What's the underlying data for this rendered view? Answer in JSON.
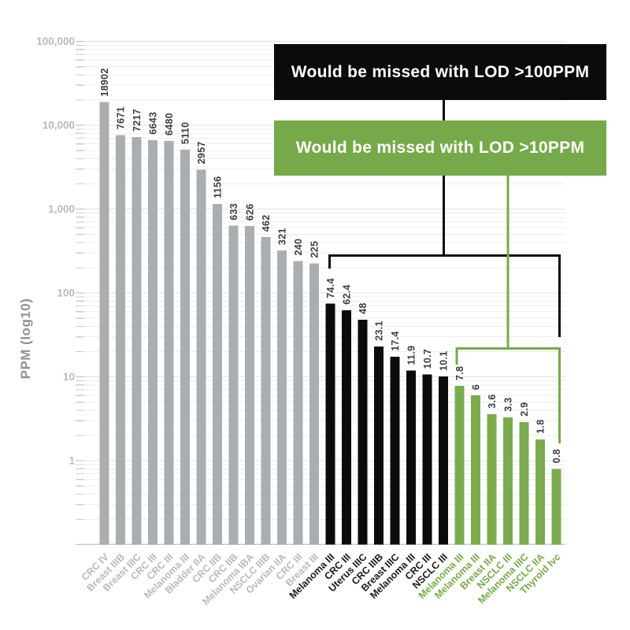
{
  "colors": {
    "background": "#ffffff",
    "gray_bar": "#abaeb0",
    "black_bar": "#0b0b0b",
    "green_bar": "#7aac4e",
    "green_accent": "#76a94a",
    "axis_text": "#b7babc",
    "axis_title_text": "#8e9295",
    "value_text": "#3c4042",
    "black_label_text": "#1b1b1b",
    "grid_minor": "#ededee",
    "grid_major": "#dfe1e2"
  },
  "annotations": {
    "lod100": {
      "text": "Would be missed with LOD >100PPM",
      "bg": "#0b0b0b"
    },
    "lod10": {
      "text": "Would be missed with LOD >10PPM",
      "bg": "#76a94a"
    }
  },
  "chart_data": {
    "type": "bar",
    "yscale": "log10",
    "ylabel": "PPM (log10)",
    "ylim": [
      0.1,
      100000
    ],
    "grid": true,
    "yticks": [
      {
        "label": "100,000",
        "value": 100000
      },
      {
        "label": "10,000",
        "value": 10000
      },
      {
        "label": "1,000",
        "value": 1000
      },
      {
        "label": "100",
        "value": 100
      },
      {
        "label": "10",
        "value": 10
      },
      {
        "label": "1",
        "value": 1
      }
    ],
    "series_groups": [
      {
        "id": "gray",
        "color": "#abaeb0",
        "callout": ""
      },
      {
        "id": "black",
        "color": "#0b0b0b",
        "callout": "lod100"
      },
      {
        "id": "green",
        "color": "#7aac4e",
        "callout": "lod10"
      }
    ],
    "bars": [
      {
        "category": "CRC IV",
        "value": 18902,
        "label": "18902",
        "group": "gray"
      },
      {
        "category": "Breast IIIB",
        "value": 7671,
        "label": "7671",
        "group": "gray"
      },
      {
        "category": "Breast IIIC",
        "value": 7217,
        "label": "7217",
        "group": "gray"
      },
      {
        "category": "CRC III",
        "value": 6643,
        "label": "6643",
        "group": "gray"
      },
      {
        "category": "CRC III",
        "value": 6480,
        "label": "6480",
        "group": "gray"
      },
      {
        "category": "Melanoma III",
        "value": 5110,
        "label": "5110",
        "group": "gray"
      },
      {
        "category": "Bladder IIA",
        "value": 2957,
        "label": "2957",
        "group": "gray"
      },
      {
        "category": "CRC IIB",
        "value": 1156,
        "label": "1156",
        "group": "gray"
      },
      {
        "category": "CRC IIB",
        "value": 633,
        "label": "633",
        "group": "gray"
      },
      {
        "category": "Melanoma IBA",
        "value": 626,
        "label": "626",
        "group": "gray"
      },
      {
        "category": "NSCLC IIIB",
        "value": 462,
        "label": "462",
        "group": "gray"
      },
      {
        "category": "Ovarian IIA",
        "value": 321,
        "label": "321",
        "group": "gray"
      },
      {
        "category": "CRC III",
        "value": 240,
        "label": "240",
        "group": "gray"
      },
      {
        "category": "Breast III",
        "value": 225,
        "label": "225",
        "group": "gray"
      },
      {
        "category": "Melanoma III",
        "value": 74.4,
        "label": "74.4",
        "group": "black"
      },
      {
        "category": "CRC III",
        "value": 62.4,
        "label": "62.4",
        "group": "black"
      },
      {
        "category": "Uterus IIIC",
        "value": 48,
        "label": "48",
        "group": "black"
      },
      {
        "category": "CRC IIIB",
        "value": 23.1,
        "label": "23.1",
        "group": "black"
      },
      {
        "category": "Breast IIIC",
        "value": 17.4,
        "label": "17.4",
        "group": "black"
      },
      {
        "category": "Melanoma III",
        "value": 11.9,
        "label": "11.9",
        "group": "black"
      },
      {
        "category": "CRC III",
        "value": 10.7,
        "label": "10.7",
        "group": "black"
      },
      {
        "category": "NSCLC III",
        "value": 10.1,
        "label": "10.1",
        "group": "black"
      },
      {
        "category": "Melanoma III",
        "value": 7.8,
        "label": "7.8",
        "group": "green"
      },
      {
        "category": "Melanoma III",
        "value": 6,
        "label": "6",
        "group": "green"
      },
      {
        "category": "Breast IIA",
        "value": 3.6,
        "label": "3.6",
        "group": "green"
      },
      {
        "category": "NSCLC III",
        "value": 3.3,
        "label": "3.3",
        "group": "green"
      },
      {
        "category": "Melanoma IIIC",
        "value": 2.9,
        "label": "2.9",
        "group": "green"
      },
      {
        "category": "NSCLC IIA",
        "value": 1.8,
        "label": "1.8",
        "group": "green"
      },
      {
        "category": "Thyroid Ivc",
        "value": 0.8,
        "label": "0.8",
        "group": "green"
      }
    ]
  }
}
